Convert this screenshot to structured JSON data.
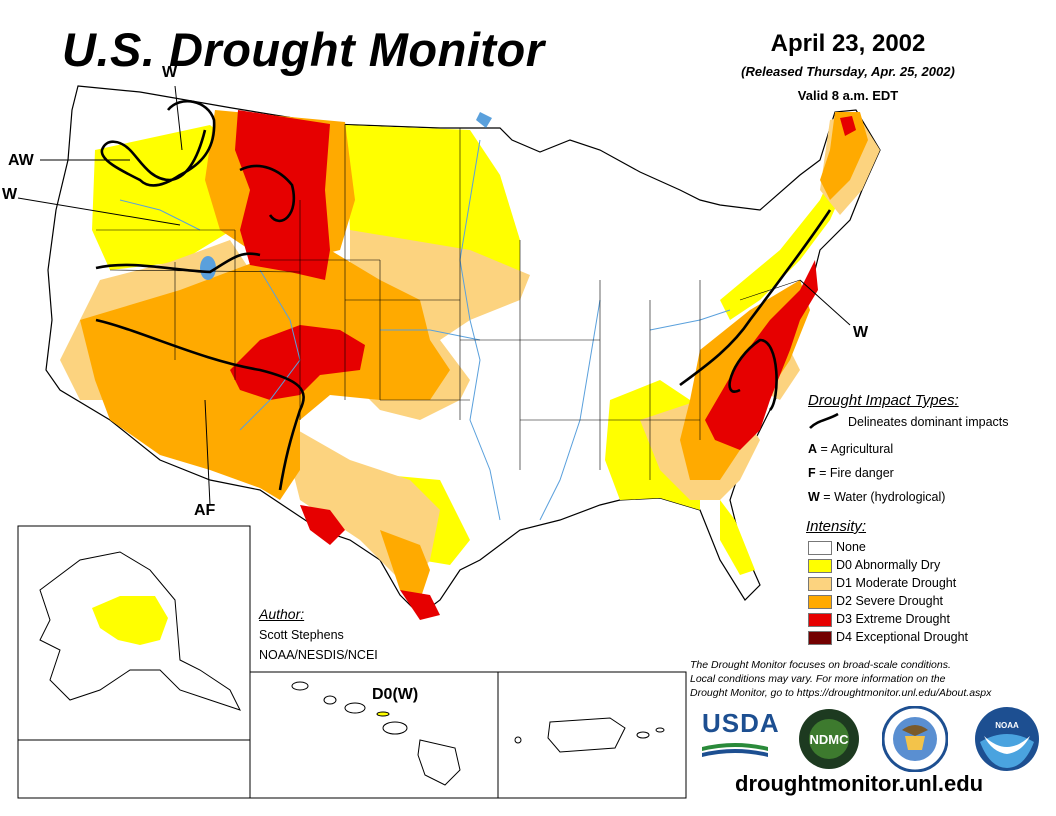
{
  "header": {
    "title": "U.S. Drought Monitor",
    "date": "April 23, 2002",
    "released": "(Released Thursday, Apr. 25, 2002)",
    "valid": "Valid 8 a.m. EDT"
  },
  "impact_labels": {
    "northwest_w": "W",
    "northwest_aw": "AW",
    "northwest_w2": "W",
    "southwest_af": "AF",
    "east_w": "W",
    "hawaii": "D0(W)"
  },
  "legend": {
    "impact_title": "Drought Impact Types:",
    "delineates": "Delineates dominant impacts",
    "impact_types": [
      {
        "code": "A",
        "label": "= Agricultural"
      },
      {
        "code": "F",
        "label": "= Fire danger"
      },
      {
        "code": "W",
        "label": "= Water (hydrological)"
      }
    ],
    "intensity_title": "Intensity:",
    "intensity": [
      {
        "label": "None",
        "color": "#ffffff"
      },
      {
        "label": "D0 Abnormally Dry",
        "color": "#ffff00"
      },
      {
        "label": "D1 Moderate Drought",
        "color": "#fcd37f"
      },
      {
        "label": "D2 Severe Drought",
        "color": "#ffaa00"
      },
      {
        "label": "D3 Extreme Drought",
        "color": "#e60000"
      },
      {
        "label": "D4 Exceptional Drought",
        "color": "#730000"
      }
    ]
  },
  "author": {
    "title": "Author:",
    "name": "Scott Stephens",
    "org": "NOAA/NESDIS/NCEI"
  },
  "note": {
    "line1": "The Drought Monitor focuses on broad-scale conditions.",
    "line2": "Local conditions may vary. For more information on the",
    "line3": "Drought Monitor, go to https://droughtmonitor.unl.edu/About.aspx"
  },
  "logos": {
    "usda": "USDA",
    "ndmc": "NDMC",
    "noaa": "NOAA"
  },
  "website": "droughtmonitor.unl.edu",
  "colors": {
    "none": "#ffffff",
    "d0": "#ffff00",
    "d1": "#fcd37f",
    "d2": "#ffaa00",
    "d3": "#e60000",
    "d4": "#730000",
    "water": "#5aa0dc",
    "border": "#000000"
  }
}
